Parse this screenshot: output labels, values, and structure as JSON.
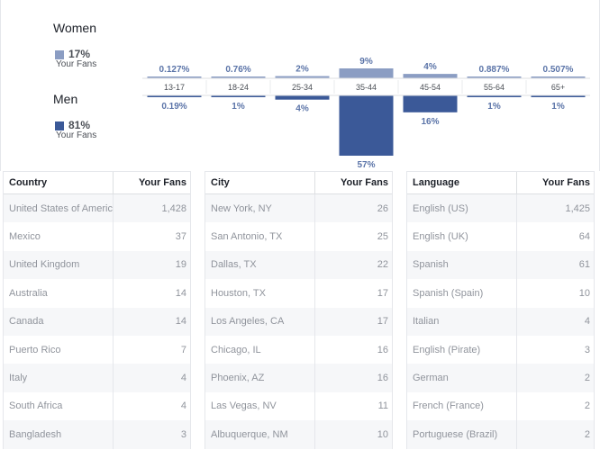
{
  "chart_data": {
    "type": "bar",
    "categories": [
      "13-17",
      "18-24",
      "25-34",
      "35-44",
      "45-54",
      "55-64",
      "65+"
    ],
    "series": [
      {
        "name": "Women",
        "values": [
          0.127,
          0.76,
          2,
          9,
          4,
          0.887,
          0.507
        ],
        "labels": [
          "0.127%",
          "0.76%",
          "2%",
          "9%",
          "4%",
          "0.887%",
          "0.507%"
        ]
      },
      {
        "name": "Men",
        "values": [
          0.19,
          1,
          4,
          57,
          16,
          1,
          1
        ],
        "labels": [
          "0.19%",
          "1%",
          "4%",
          "57%",
          "16%",
          "1%",
          "1%"
        ]
      }
    ]
  },
  "legend": {
    "women": {
      "label": "Women",
      "pct": "17%",
      "sub": "Your Fans",
      "color": "#8b9dc3"
    },
    "men": {
      "label": "Men",
      "pct": "81%",
      "sub": "Your Fans",
      "color": "#3b5998"
    }
  },
  "tables": [
    {
      "col1": "Country",
      "col2": "Your Fans",
      "rows": [
        {
          "name": "United States of America",
          "value": "1,428"
        },
        {
          "name": "Mexico",
          "value": "37"
        },
        {
          "name": "United Kingdom",
          "value": "19"
        },
        {
          "name": "Australia",
          "value": "14"
        },
        {
          "name": "Canada",
          "value": "14"
        },
        {
          "name": "Puerto Rico",
          "value": "7"
        },
        {
          "name": "Italy",
          "value": "4"
        },
        {
          "name": "South Africa",
          "value": "4"
        },
        {
          "name": "Bangladesh",
          "value": "3"
        }
      ]
    },
    {
      "col1": "City",
      "col2": "Your Fans",
      "rows": [
        {
          "name": "New York, NY",
          "value": "26"
        },
        {
          "name": "San Antonio, TX",
          "value": "25"
        },
        {
          "name": "Dallas, TX",
          "value": "22"
        },
        {
          "name": "Houston, TX",
          "value": "17"
        },
        {
          "name": "Los Angeles, CA",
          "value": "17"
        },
        {
          "name": "Chicago, IL",
          "value": "16"
        },
        {
          "name": "Phoenix, AZ",
          "value": "16"
        },
        {
          "name": "Las Vegas, NV",
          "value": "11"
        },
        {
          "name": "Albuquerque, NM",
          "value": "10"
        }
      ]
    },
    {
      "col1": "Language",
      "col2": "Your Fans",
      "rows": [
        {
          "name": "English (US)",
          "value": "1,425"
        },
        {
          "name": "English (UK)",
          "value": "64"
        },
        {
          "name": "Spanish",
          "value": "61"
        },
        {
          "name": "Spanish (Spain)",
          "value": "10"
        },
        {
          "name": "Italian",
          "value": "4"
        },
        {
          "name": "English (Pirate)",
          "value": "3"
        },
        {
          "name": "German",
          "value": "2"
        },
        {
          "name": "French (France)",
          "value": "2"
        },
        {
          "name": "Portuguese (Brazil)",
          "value": "2"
        }
      ]
    }
  ]
}
